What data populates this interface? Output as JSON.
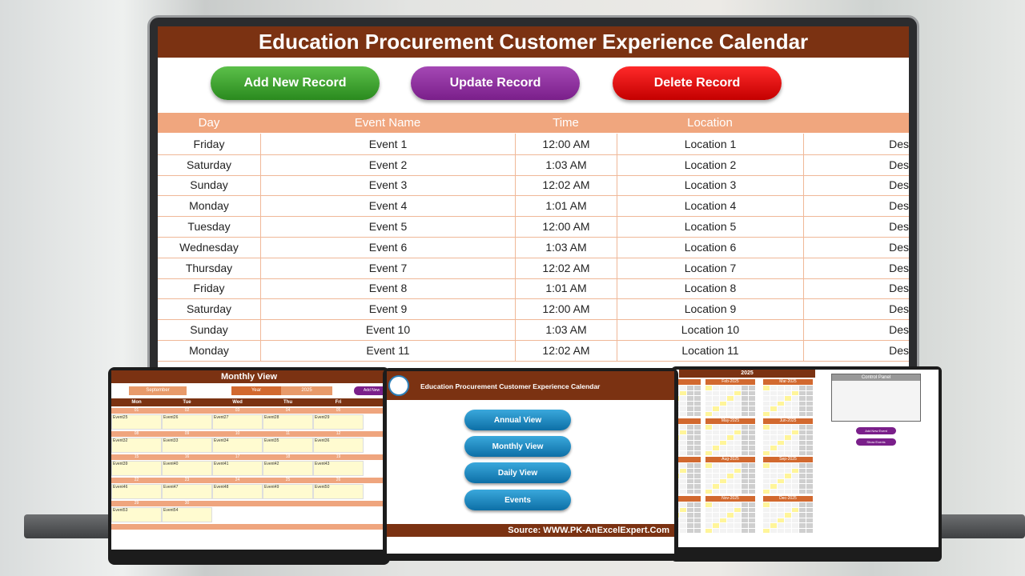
{
  "header": {
    "title": "Education Procurement Customer Experience Calendar"
  },
  "buttons": [
    "Add New Record",
    "Update Record",
    "Delete Record"
  ],
  "table": {
    "columns": [
      "Day",
      "Event Name",
      "Time",
      "Location"
    ],
    "rows": [
      [
        "Friday",
        "Event 1",
        "12:00 AM",
        "Location 1",
        "Des"
      ],
      [
        "Saturday",
        "Event 2",
        "1:03 AM",
        "Location 2",
        "Des"
      ],
      [
        "Sunday",
        "Event 3",
        "12:02 AM",
        "Location 3",
        "Des"
      ],
      [
        "Monday",
        "Event 4",
        "1:01 AM",
        "Location 4",
        "Des"
      ],
      [
        "Tuesday",
        "Event 5",
        "12:00 AM",
        "Location 5",
        "Des"
      ],
      [
        "Wednesday",
        "Event 6",
        "1:03 AM",
        "Location 6",
        "Des"
      ],
      [
        "Thursday",
        "Event 7",
        "12:02 AM",
        "Location 7",
        "Des"
      ],
      [
        "Friday",
        "Event 8",
        "1:01 AM",
        "Location 8",
        "Des"
      ],
      [
        "Saturday",
        "Event 9",
        "12:00 AM",
        "Location 9",
        "Des"
      ],
      [
        "Sunday",
        "Event 10",
        "1:03 AM",
        "Location 10",
        "Des"
      ],
      [
        "Monday",
        "Event 11",
        "12:02 AM",
        "Location 11",
        "Des"
      ]
    ]
  },
  "monthly_view": {
    "title": "Monthly View",
    "month": "September",
    "year_label": "Year",
    "year": "2025",
    "button": "Add New",
    "weekdays": [
      "Mon",
      "Tue",
      "Wed",
      "Thu",
      "Fri"
    ],
    "weeks": [
      {
        "dates": [
          "01",
          "02",
          "03",
          "04",
          "05"
        ],
        "events": [
          "Event25",
          "Event26",
          "Event27",
          "Event28",
          "Event29"
        ]
      },
      {
        "dates": [
          "08",
          "09",
          "10",
          "11",
          "12"
        ],
        "events": [
          "Event32",
          "Event33",
          "Event34",
          "Event35",
          "Event36"
        ]
      },
      {
        "dates": [
          "15",
          "16",
          "17",
          "18",
          "19"
        ],
        "events": [
          "Event39",
          "Event40",
          "Event41",
          "Event42",
          "Event43"
        ]
      },
      {
        "dates": [
          "22",
          "23",
          "24",
          "25",
          "26"
        ],
        "events": [
          "Event46",
          "Event47",
          "Event48",
          "Event49",
          "Event50"
        ]
      },
      {
        "dates": [
          "29",
          "30"
        ],
        "events": [
          "Event53",
          "Event54"
        ]
      }
    ]
  },
  "menu_screen": {
    "title": "Education Procurement Customer Experience Calendar",
    "buttons": [
      "Annual View",
      "Monthly View",
      "Daily View",
      "Events"
    ],
    "source": "Source: WWW.PK-AnExcelExpert.Com"
  },
  "annual_view": {
    "year": "2025",
    "months": [
      "Feb-2025",
      "Mar-2025",
      "May-2025",
      "Jun-2025",
      "Aug-2025",
      "Sep-2025",
      "Nov-2025",
      "Dec-2025"
    ],
    "control_panel": "Control Panel",
    "buttons": [
      "Add New Event",
      "Show Events"
    ]
  }
}
